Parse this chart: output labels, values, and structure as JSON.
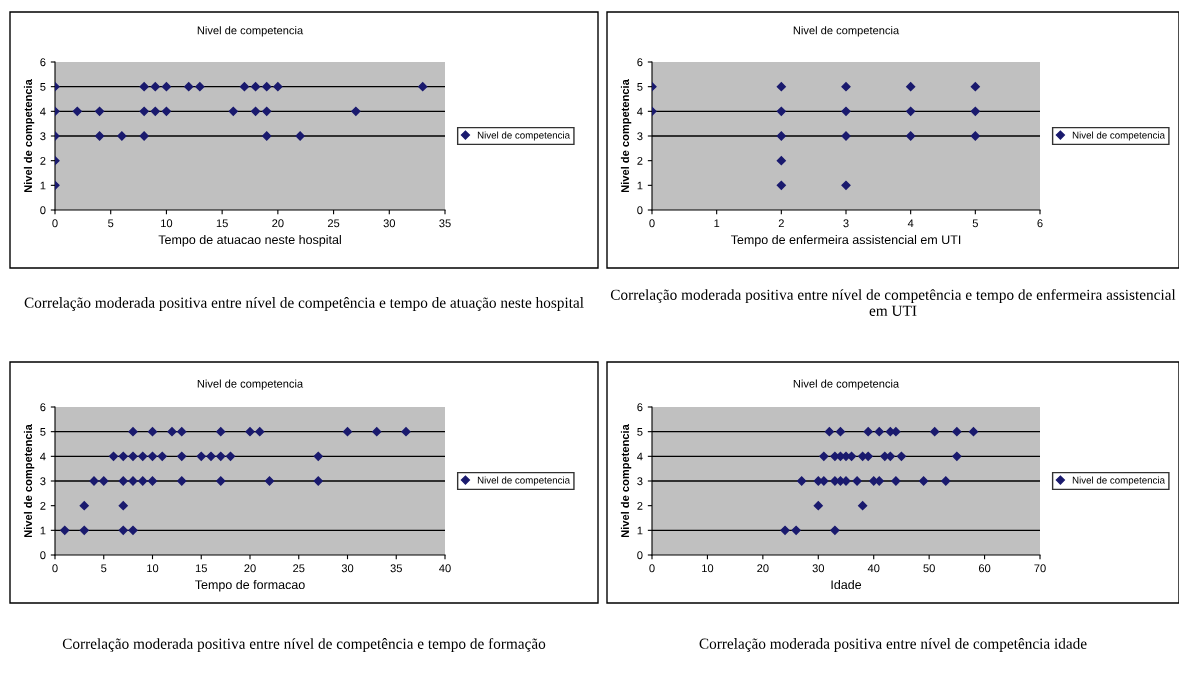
{
  "chart_data": [
    {
      "type": "scatter",
      "title": "Nivel de competencia",
      "xlabel": "Tempo de atuacao neste hospital",
      "ylabel": "Nivel de competencia",
      "annotations": [
        "Correlação moderada positiva entre nível de competência e tempo de atuação neste hospital"
      ],
      "xlim": [
        0,
        35
      ],
      "xticks": [
        0,
        5,
        10,
        15,
        20,
        25,
        30,
        35
      ],
      "ylim": [
        0,
        6
      ],
      "yticks": [
        0,
        1,
        2,
        3,
        4,
        5,
        6
      ],
      "marker": "diamond",
      "legend": "right",
      "grid": false,
      "ref_lines": [
        {
          "axis": "y",
          "value": 3,
          "color": "#000000"
        },
        {
          "axis": "y",
          "value": 4,
          "color": "#000000"
        },
        {
          "axis": "y",
          "value": 5,
          "color": "#000000"
        }
      ],
      "series": [
        {
          "name": "Nivel de competencia",
          "color": "#1a1a6e",
          "x": [
            0,
            8,
            9,
            10,
            12,
            13,
            17,
            18,
            19,
            20,
            33,
            0,
            2,
            4,
            8,
            9,
            10,
            16,
            18,
            19,
            27,
            0,
            4,
            6,
            8,
            19,
            22,
            0,
            0
          ],
          "values": [
            5,
            5,
            5,
            5,
            5,
            5,
            5,
            5,
            5,
            5,
            5,
            4,
            4,
            4,
            4,
            4,
            4,
            4,
            4,
            4,
            4,
            3,
            3,
            3,
            3,
            3,
            3,
            2,
            1
          ]
        }
      ]
    },
    {
      "type": "scatter",
      "title": "Nivel de competencia",
      "xlabel": "Tempo de enfermeira assistencial em UTI",
      "ylabel": "Nivel de competencia",
      "annotations": [
        "Correlação moderada positiva entre nível de competência e tempo de enfermeira assistencial em UTI"
      ],
      "xlim": [
        0,
        6
      ],
      "xticks": [
        0,
        1,
        2,
        3,
        4,
        5,
        6
      ],
      "ylim": [
        0,
        6
      ],
      "yticks": [
        0,
        1,
        2,
        3,
        4,
        5,
        6
      ],
      "marker": "diamond",
      "legend": "right",
      "grid": false,
      "ref_lines": [
        {
          "axis": "y",
          "value": 3,
          "color": "#000000"
        },
        {
          "axis": "y",
          "value": 4,
          "color": "#000000"
        }
      ],
      "series": [
        {
          "name": "Nivel de competencia",
          "color": "#1a1a6e",
          "x": [
            0,
            2,
            3,
            4,
            5,
            0,
            2,
            3,
            4,
            5,
            2,
            3,
            4,
            5,
            2,
            2,
            3
          ],
          "values": [
            5,
            5,
            5,
            5,
            5,
            4,
            4,
            4,
            4,
            4,
            3,
            3,
            3,
            3,
            2,
            1,
            1
          ]
        }
      ]
    },
    {
      "type": "scatter",
      "title": "Nivel de competencia",
      "xlabel": "Tempo de formacao",
      "ylabel": "Nivel de competencia",
      "annotations": [
        "Correlação moderada positiva entre nível de competência e tempo de formação"
      ],
      "xlim": [
        0,
        40
      ],
      "xticks": [
        0,
        5,
        10,
        15,
        20,
        25,
        30,
        35,
        40
      ],
      "ylim": [
        0,
        6
      ],
      "yticks": [
        0,
        1,
        2,
        3,
        4,
        5,
        6
      ],
      "marker": "diamond",
      "legend": "right",
      "grid": false,
      "ref_lines": [
        {
          "axis": "y",
          "value": 1,
          "color": "#000000"
        },
        {
          "axis": "y",
          "value": 3,
          "color": "#000000"
        },
        {
          "axis": "y",
          "value": 4,
          "color": "#000000"
        },
        {
          "axis": "y",
          "value": 5,
          "color": "#000000"
        }
      ],
      "series": [
        {
          "name": "Nivel de competencia",
          "color": "#1a1a6e",
          "x": [
            8,
            10,
            12,
            13,
            17,
            20,
            21,
            30,
            33,
            36,
            6,
            7,
            8,
            9,
            10,
            11,
            13,
            15,
            16,
            17,
            18,
            27,
            4,
            5,
            7,
            8,
            9,
            10,
            13,
            17,
            22,
            27,
            3,
            7,
            1,
            3,
            7,
            8
          ],
          "values": [
            5,
            5,
            5,
            5,
            5,
            5,
            5,
            5,
            5,
            5,
            4,
            4,
            4,
            4,
            4,
            4,
            4,
            4,
            4,
            4,
            4,
            4,
            3,
            3,
            3,
            3,
            3,
            3,
            3,
            3,
            3,
            3,
            2,
            2,
            1,
            1,
            1,
            1
          ]
        }
      ]
    },
    {
      "type": "scatter",
      "title": "Nivel de competencia",
      "xlabel": "Idade",
      "ylabel": "Nivel de competencia",
      "annotations": [
        "Correlação moderada positiva entre nível de competência idade"
      ],
      "xlim": [
        0,
        70
      ],
      "xticks": [
        0,
        10,
        20,
        30,
        40,
        50,
        60,
        70
      ],
      "ylim": [
        0,
        6
      ],
      "yticks": [
        0,
        1,
        2,
        3,
        4,
        5,
        6
      ],
      "marker": "diamond",
      "legend": "right",
      "grid": false,
      "ref_lines": [
        {
          "axis": "y",
          "value": 1,
          "color": "#000000"
        },
        {
          "axis": "y",
          "value": 3,
          "color": "#000000"
        },
        {
          "axis": "y",
          "value": 4,
          "color": "#000000"
        },
        {
          "axis": "y",
          "value": 5,
          "color": "#000000"
        }
      ],
      "series": [
        {
          "name": "Nivel de competencia",
          "color": "#1a1a6e",
          "x": [
            32,
            34,
            39,
            41,
            43,
            44,
            51,
            55,
            58,
            31,
            33,
            34,
            35,
            36,
            38,
            39,
            42,
            43,
            45,
            55,
            27,
            30,
            31,
            33,
            34,
            35,
            37,
            40,
            41,
            44,
            49,
            53,
            30,
            38,
            24,
            26,
            33
          ],
          "values": [
            5,
            5,
            5,
            5,
            5,
            5,
            5,
            5,
            5,
            4,
            4,
            4,
            4,
            4,
            4,
            4,
            4,
            4,
            4,
            4,
            3,
            3,
            3,
            3,
            3,
            3,
            3,
            3,
            3,
            3,
            3,
            3,
            2,
            2,
            1,
            1,
            1
          ]
        }
      ]
    }
  ]
}
